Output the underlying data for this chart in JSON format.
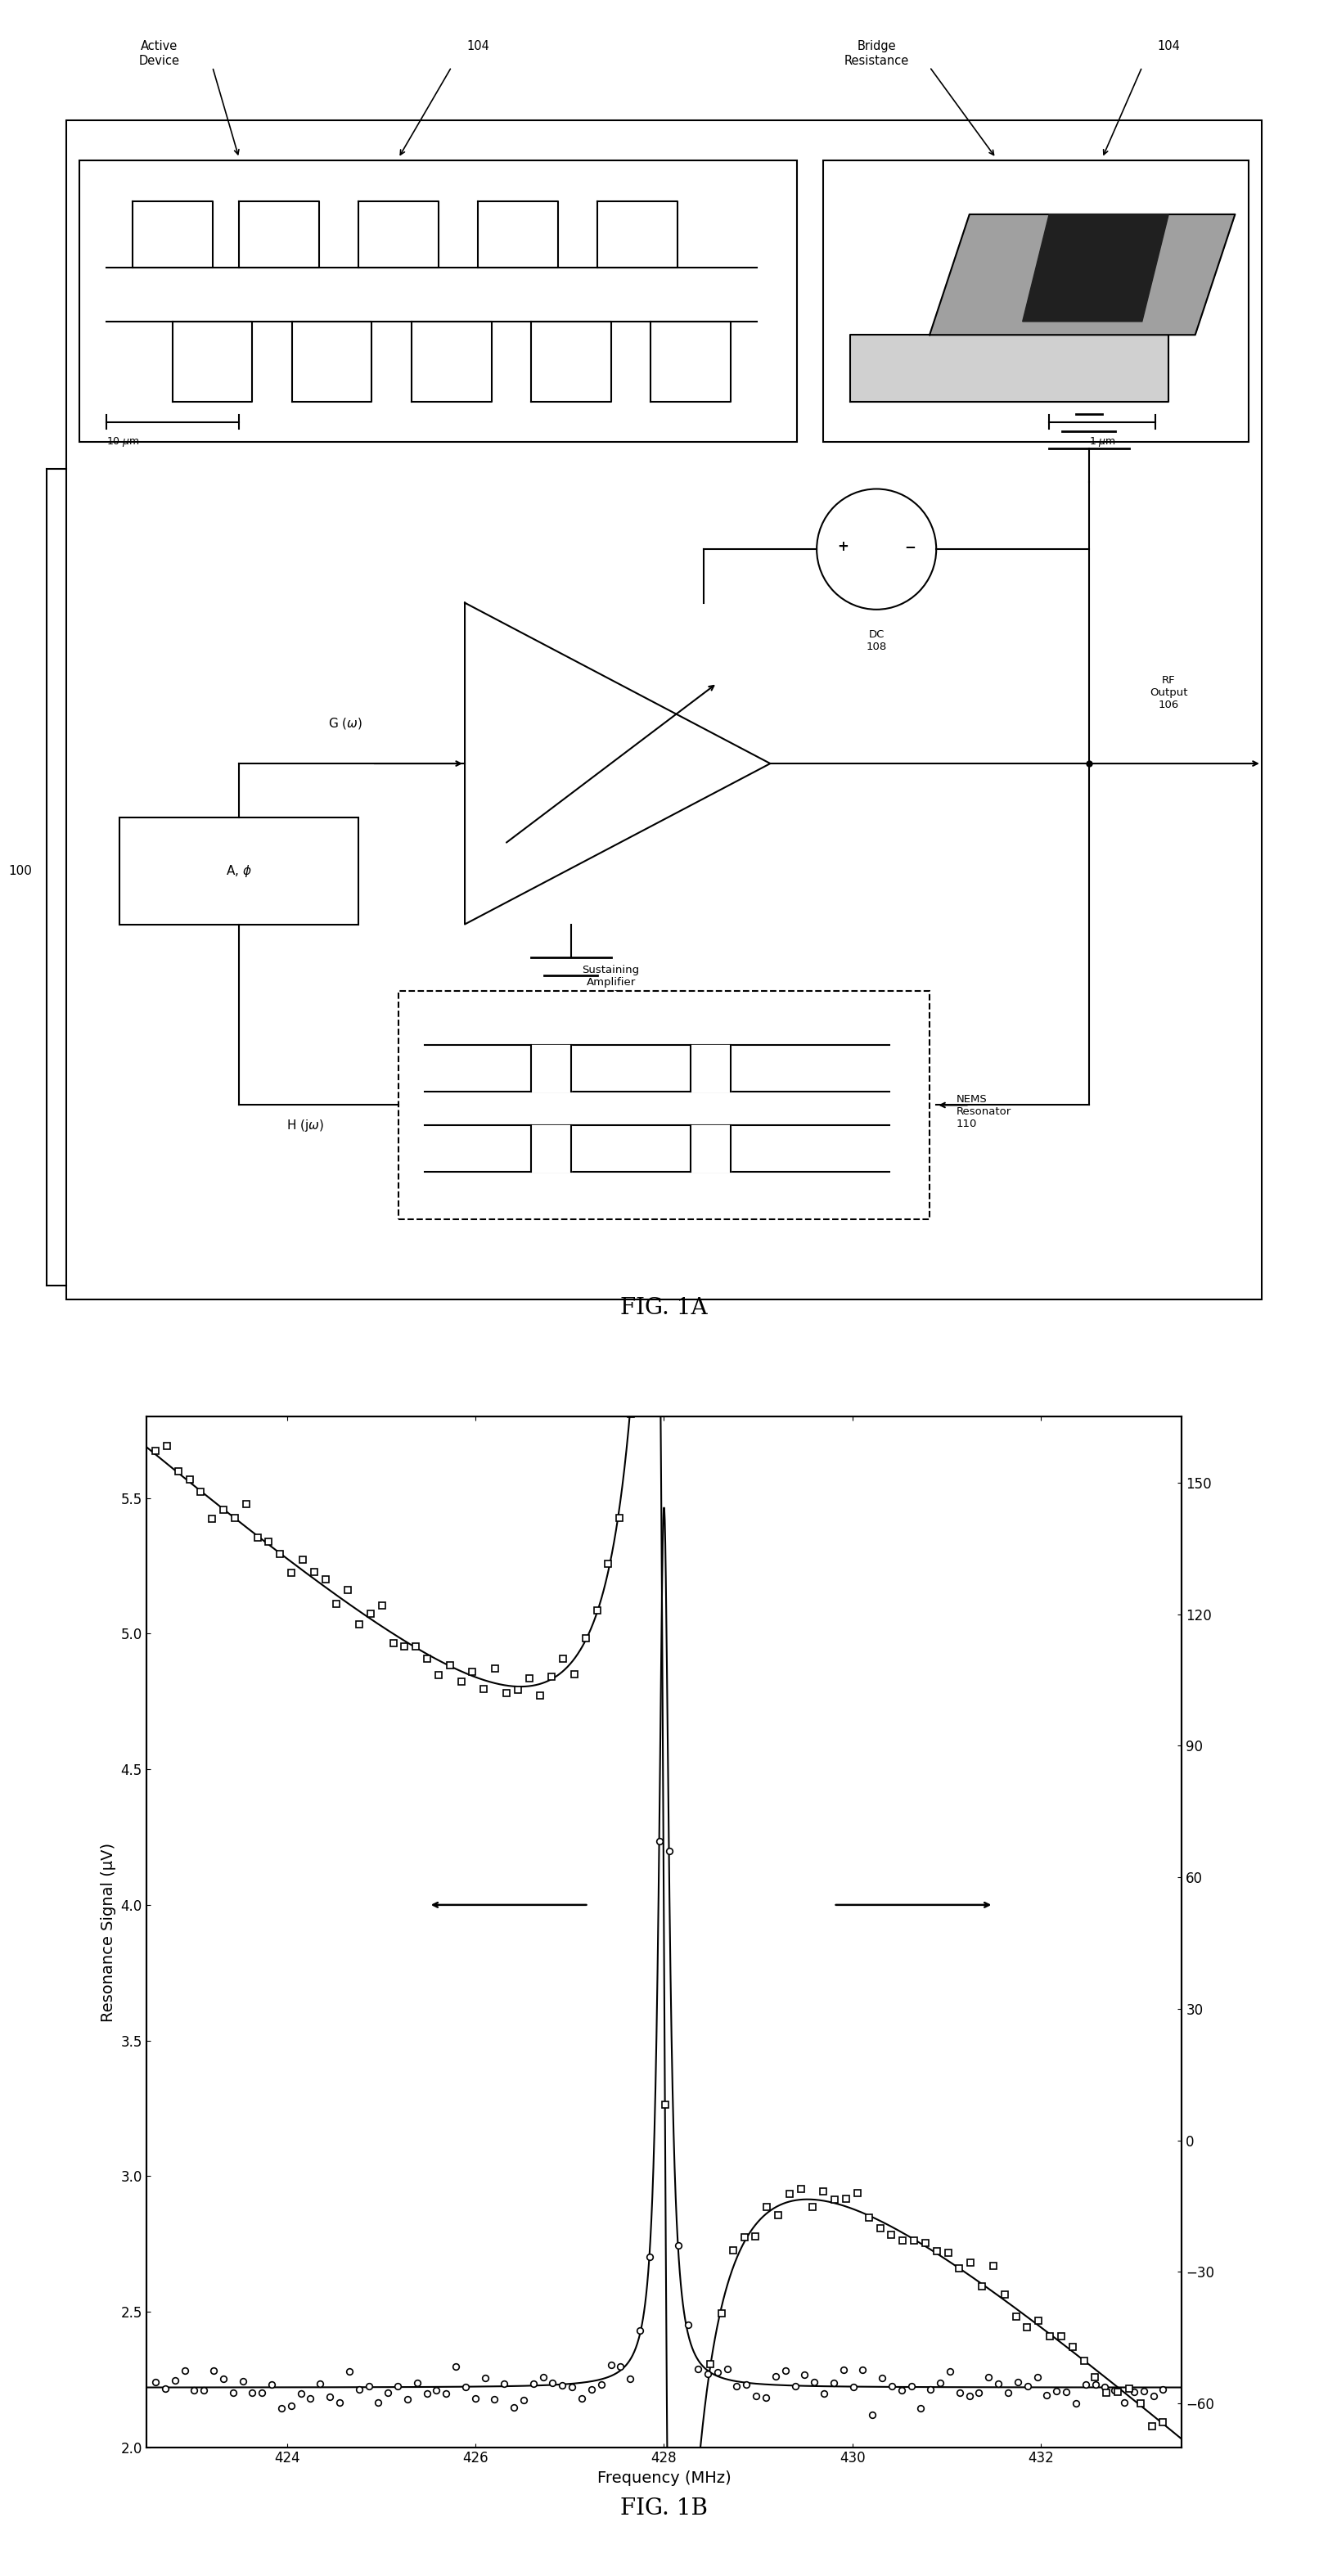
{
  "fig_title_a": "FIG. 1A",
  "fig_title_b": "FIG. 1B",
  "xlabel": "Frequency (MHz)",
  "ylabel_left": "Resonance Signal (μV)",
  "xlim": [
    422.5,
    433.5
  ],
  "ylim_left": [
    2.0,
    5.8
  ],
  "ylim_right": [
    -70,
    165
  ],
  "xticks": [
    424,
    426,
    428,
    430,
    432
  ],
  "yticks_left": [
    2.0,
    2.5,
    3.0,
    3.5,
    4.0,
    4.5,
    5.0,
    5.5
  ],
  "yticks_right": [
    -60,
    -30,
    0,
    30,
    60,
    90,
    120,
    150
  ],
  "background_color": "#ffffff",
  "line_color": "#000000"
}
